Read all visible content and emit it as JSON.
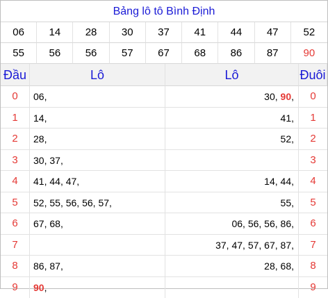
{
  "title": "Bảng lô tô Bình Định",
  "numbers": [
    "06",
    "14",
    "28",
    "30",
    "37",
    "41",
    "44",
    "47",
    "52",
    "55",
    "56",
    "56",
    "57",
    "67",
    "68",
    "86",
    "87",
    "90"
  ],
  "highlight_number": "90",
  "headers": {
    "dau": "Đầu",
    "lo_left": "Lô",
    "lo_right": "Lô",
    "duoi": "Đuôi"
  },
  "rows": [
    {
      "dau": "0",
      "left": [
        "06"
      ],
      "right": [
        "30",
        "90"
      ],
      "duoi": "0"
    },
    {
      "dau": "1",
      "left": [
        "14"
      ],
      "right": [
        "41"
      ],
      "duoi": "1"
    },
    {
      "dau": "2",
      "left": [
        "28"
      ],
      "right": [
        "52"
      ],
      "duoi": "2"
    },
    {
      "dau": "3",
      "left": [
        "30",
        "37"
      ],
      "right": [],
      "duoi": "3"
    },
    {
      "dau": "4",
      "left": [
        "41",
        "44",
        "47"
      ],
      "right": [
        "14",
        "44"
      ],
      "duoi": "4"
    },
    {
      "dau": "5",
      "left": [
        "52",
        "55",
        "56",
        "56",
        "57"
      ],
      "right": [
        "55"
      ],
      "duoi": "5"
    },
    {
      "dau": "6",
      "left": [
        "67",
        "68"
      ],
      "right": [
        "06",
        "56",
        "56",
        "86"
      ],
      "duoi": "6"
    },
    {
      "dau": "7",
      "left": [],
      "right": [
        "37",
        "47",
        "57",
        "67",
        "87"
      ],
      "duoi": "7"
    },
    {
      "dau": "8",
      "left": [
        "86",
        "87"
      ],
      "right": [
        "28",
        "68"
      ],
      "duoi": "8"
    },
    {
      "dau": "9",
      "left": [
        "90"
      ],
      "right": [],
      "duoi": "9"
    }
  ],
  "colors": {
    "title": "#1a1ad6",
    "highlight": "#e53935",
    "header_bg": "#f2f2f2"
  }
}
